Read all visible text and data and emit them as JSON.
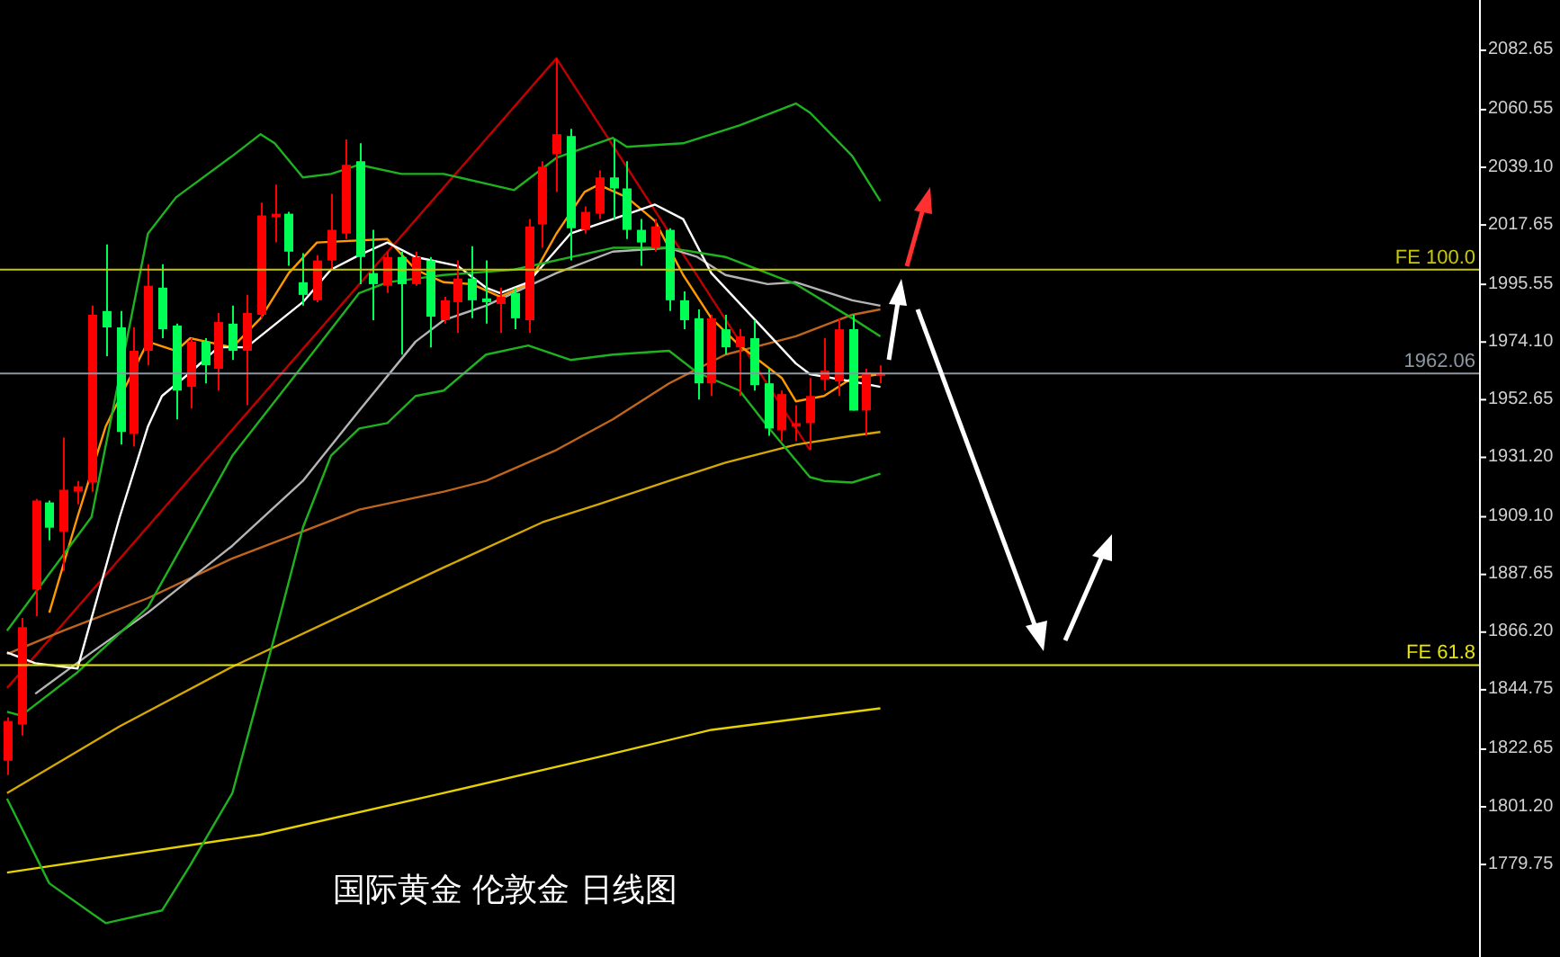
{
  "chart_data": {
    "type": "candlestick",
    "title": "国际黄金 伦敦金 日线图",
    "categories": [
      null,
      null,
      null,
      null,
      null,
      null,
      null,
      null,
      null,
      null,
      null,
      null,
      null,
      null,
      null,
      null,
      null,
      null,
      null,
      null,
      null,
      null,
      null,
      null,
      null,
      null,
      null,
      null,
      null,
      null,
      null,
      null,
      null,
      null,
      null,
      null,
      null,
      null,
      null,
      null,
      null,
      null,
      null,
      null,
      null,
      null,
      null,
      null,
      null,
      null,
      null,
      null,
      null,
      null,
      null,
      null,
      null,
      null,
      null,
      null,
      null,
      null,
      null,
      null,
      null,
      null,
      null,
      null,
      null,
      null,
      null,
      null,
      null,
      null,
      null,
      null,
      null,
      null,
      null,
      null,
      null,
      null,
      null,
      null,
      null,
      null,
      null,
      null,
      null,
      null,
      null,
      null,
      null,
      null,
      null,
      null,
      null,
      null,
      null,
      null,
      null,
      null,
      null,
      null,
      null
    ],
    "ohlc": [
      [
        1818.0,
        1834.2,
        1812.7,
        1832.8
      ],
      [
        1831.5,
        1871.1,
        1827.4,
        1867.7
      ],
      [
        1881.8,
        1915.4,
        1871.8,
        1914.8
      ],
      [
        1914.1,
        1914.8,
        1900.0,
        1904.7
      ],
      [
        1903.3,
        1938.2,
        1888.6,
        1918.8
      ],
      [
        1918.1,
        1922.1,
        1913.4,
        1920.1
      ],
      [
        1921.5,
        1987.3,
        1918.1,
        1983.9
      ],
      [
        1985.3,
        2010.1,
        1968.5,
        1979.2
      ],
      [
        1979.2,
        1985.3,
        1935.6,
        1940.3
      ],
      [
        1939.6,
        1979.2,
        1934.9,
        1970.5
      ],
      [
        1970.5,
        2002.7,
        1965.1,
        1994.7
      ],
      [
        1994.0,
        2002.7,
        1975.2,
        1978.5
      ],
      [
        1979.9,
        1980.6,
        1945.0,
        1955.7
      ],
      [
        1957.1,
        1975.2,
        1949.0,
        1973.9
      ],
      [
        1973.9,
        1975.2,
        1958.4,
        1965.1
      ],
      [
        1963.8,
        1984.6,
        1955.7,
        1981.2
      ],
      [
        1980.6,
        1987.3,
        1967.1,
        1970.5
      ],
      [
        1970.5,
        1991.3,
        1950.3,
        1984.6
      ],
      [
        1983.9,
        2025.6,
        1982.6,
        2020.9
      ],
      [
        2020.2,
        2032.3,
        2010.8,
        2021.5
      ],
      [
        2021.5,
        2022.2,
        2002.1,
        2007.4
      ],
      [
        1996.0,
        2006.8,
        1987.3,
        1991.3
      ],
      [
        1989.3,
        2006.1,
        1988.6,
        2004.1
      ],
      [
        2004.1,
        2028.9,
        2000.7,
        2015.5
      ],
      [
        2014.1,
        2049.1,
        2012.1,
        2039.7
      ],
      [
        2041.0,
        2047.7,
        1995.3,
        2005.4
      ],
      [
        1999.4,
        2015.5,
        1981.9,
        1995.3
      ],
      [
        1994.7,
        2007.4,
        1992.0,
        2005.4
      ],
      [
        2005.4,
        2007.4,
        1969.1,
        1995.3
      ],
      [
        1995.3,
        2007.4,
        1994.7,
        2005.4
      ],
      [
        2004.1,
        2005.4,
        1971.8,
        1983.2
      ],
      [
        1981.9,
        1990.6,
        1980.6,
        1989.3
      ],
      [
        1988.6,
        2004.1,
        1977.2,
        1997.4
      ],
      [
        1997.4,
        2009.4,
        1982.6,
        1989.3
      ],
      [
        1990.0,
        2004.1,
        1980.6,
        1988.6
      ],
      [
        1987.9,
        1994.0,
        1977.2,
        1990.6
      ],
      [
        1992.0,
        1994.0,
        1978.5,
        1982.6
      ],
      [
        1981.9,
        2019.5,
        1977.2,
        2016.8
      ],
      [
        2017.5,
        2041.0,
        2008.8,
        2039.0
      ],
      [
        2043.7,
        2079.3,
        2029.6,
        2051.1
      ],
      [
        2050.4,
        2053.1,
        2004.1,
        2016.1
      ],
      [
        2015.5,
        2024.2,
        2014.1,
        2022.2
      ],
      [
        2021.5,
        2037.6,
        2019.5,
        2035.0
      ],
      [
        2035.0,
        2049.1,
        2019.5,
        2030.9
      ],
      [
        2030.9,
        2041.0,
        2012.1,
        2015.5
      ],
      [
        2015.5,
        2019.5,
        2002.1,
        2010.8
      ],
      [
        2008.8,
        2019.5,
        2007.4,
        2016.8
      ],
      [
        2015.5,
        2016.1,
        1985.3,
        1989.3
      ],
      [
        1989.3,
        1992.6,
        1978.5,
        1981.9
      ],
      [
        1982.6,
        1985.9,
        1952.4,
        1958.4
      ],
      [
        1958.4,
        1983.9,
        1953.7,
        1982.6
      ],
      [
        1978.5,
        1983.9,
        1969.1,
        1971.8
      ],
      [
        1971.8,
        1978.5,
        1953.7,
        1975.9
      ],
      [
        1975.2,
        1981.9,
        1955.7,
        1957.7
      ],
      [
        1958.4,
        1963.8,
        1938.9,
        1941.6
      ],
      [
        1940.9,
        1955.7,
        1936.9,
        1954.4
      ],
      [
        1942.3,
        1950.3,
        1936.9,
        1943.6
      ],
      [
        1943.6,
        1960.4,
        1933.6,
        1953.7
      ],
      [
        1959.7,
        1975.2,
        1955.7,
        1963.1
      ],
      [
        1959.1,
        1982.6,
        1953.7,
        1978.5
      ],
      [
        1978.5,
        1983.9,
        1948.3,
        1948.3
      ],
      [
        1948.3,
        1963.8,
        1938.9,
        1962.4
      ],
      [
        1961.1,
        1965.1,
        1958.4,
        1962.1
      ],
      null,
      null,
      null,
      null,
      null,
      null,
      null,
      null,
      null,
      null,
      null,
      null,
      null,
      null,
      null,
      null,
      null,
      null,
      null,
      null,
      null,
      null,
      null,
      null,
      null,
      null,
      null,
      null,
      null,
      null,
      null,
      null,
      null,
      null,
      null,
      null,
      null,
      null,
      null,
      null,
      null,
      null
    ],
    "colors": [
      "#ff0000",
      "#ff0000",
      "#ff0000",
      "#00ff55",
      "#ff0000",
      "#ff0000",
      "#ff0000",
      "#00ff55",
      "#00ff55",
      "#ff0000",
      "#ff0000",
      "#00ff55",
      "#00ff55",
      "#ff0000",
      "#00ff55",
      "#ff0000",
      "#00ff55",
      "#ff0000",
      "#ff0000",
      "#ff0000",
      "#00ff55",
      "#00ff55",
      "#ff0000",
      "#ff0000",
      "#ff0000",
      "#00ff55",
      "#00ff55",
      "#ff0000",
      "#00ff55",
      "#ff0000",
      "#00ff55",
      "#ff0000",
      "#ff0000",
      "#00ff55",
      "#00ff55",
      "#ff0000",
      "#00ff55",
      "#ff0000",
      "#ff0000",
      "#ff0000",
      "#00ff55",
      "#ff0000",
      "#ff0000",
      "#00ff55",
      "#00ff55",
      "#00ff55",
      "#ff0000",
      "#00ff55",
      "#00ff55",
      "#00ff55",
      "#ff0000",
      "#00ff55",
      "#ff0000",
      "#00ff55",
      "#00ff55",
      "#ff0000",
      "#ff0000",
      "#ff0000",
      "#ff0000",
      "#ff0000",
      "#00ff55",
      "#ff0000",
      "#ff0000",
      null,
      null,
      null,
      null,
      null,
      null,
      null,
      null,
      null,
      null,
      null,
      null,
      null,
      null,
      null,
      null,
      null,
      null,
      null,
      null,
      null,
      null,
      null,
      null,
      null,
      null,
      null,
      null,
      null,
      null,
      null,
      null,
      null,
      null,
      null,
      null,
      null,
      null,
      null,
      null,
      null,
      null
    ],
    "series": [
      {
        "type": "line",
        "color": "#1fb21f",
        "values": [
          1866.4,
          null,
          null,
          null,
          null,
          null,
          1908.7,
          null,
          null,
          null,
          2014.1,
          null,
          2027.6,
          null,
          null,
          null,
          2043.0,
          null,
          2051.1,
          2047.7,
          null,
          2035.0,
          null,
          2036.3,
          null,
          2039.7,
          null,
          null,
          2036.3,
          null,
          null,
          2036.3,
          null,
          null,
          null,
          null,
          2030.3,
          null,
          null,
          2042.3,
          null,
          null,
          null,
          2049.7,
          2046.4,
          null,
          null,
          null,
          2047.7,
          null,
          null,
          null,
          2054.4,
          null,
          null,
          null,
          2062.5,
          2059.1,
          null,
          null,
          2043.0,
          null,
          2026.2,
          null,
          null,
          null,
          null,
          null,
          null,
          null,
          null,
          null,
          null,
          null,
          null,
          null,
          null,
          null,
          null,
          null,
          null,
          null,
          null,
          null,
          null,
          null,
          null,
          null,
          null,
          null,
          null,
          null,
          null,
          null,
          null,
          null,
          null,
          null,
          null,
          null,
          null,
          null,
          null,
          null,
          null
        ]
      },
      {
        "type": "line",
        "color": "#1fb21f",
        "values": [
          1836.2,
          1834.8,
          null,
          null,
          null,
          1850.9,
          null,
          null,
          null,
          null,
          1875.1,
          null,
          null,
          null,
          null,
          null,
          1931.5,
          null,
          null,
          null,
          null,
          null,
          1971.8,
          null,
          null,
          1992.0,
          null,
          1996.0,
          null,
          null,
          null,
          1998.7,
          null,
          null,
          null,
          null,
          2000.7,
          null,
          null,
          null,
          null,
          null,
          null,
          2008.8,
          null,
          null,
          null,
          2008.8,
          null,
          null,
          null,
          2005.4,
          null,
          null,
          null,
          null,
          1995.3,
          null,
          null,
          null,
          1982.6,
          null,
          1975.9,
          null,
          null,
          null,
          null,
          null,
          null,
          null,
          null,
          null,
          null,
          null,
          null,
          null,
          null,
          null,
          null,
          null,
          null,
          null,
          null,
          null,
          null,
          null,
          null,
          null,
          null,
          null,
          null,
          null,
          null,
          null,
          null,
          null,
          null,
          null,
          null,
          null,
          null,
          null,
          null,
          null,
          null
        ]
      },
      {
        "type": "line",
        "color": "#1fb21f",
        "values": [
          1803.9,
          null,
          null,
          1772.4,
          null,
          null,
          null,
          1757.6,
          null,
          null,
          null,
          1762.3,
          null,
          1779.1,
          null,
          null,
          1806.0,
          null,
          null,
          1864.4,
          null,
          1904.7,
          null,
          1931.5,
          null,
          1941.6,
          null,
          1943.6,
          null,
          1953.7,
          null,
          1955.7,
          null,
          null,
          1969.1,
          null,
          null,
          1972.5,
          null,
          null,
          1967.1,
          null,
          null,
          1969.1,
          null,
          null,
          null,
          1970.5,
          null,
          1962.4,
          null,
          null,
          1955.7,
          null,
          1942.3,
          null,
          null,
          1923.5,
          1922.1,
          null,
          1921.5,
          null,
          1924.8,
          null,
          null,
          null,
          null,
          null,
          null,
          null,
          null,
          null,
          null,
          null,
          null,
          null,
          null,
          null,
          null,
          null,
          null,
          null,
          null,
          null,
          null,
          null,
          null,
          null,
          null,
          null,
          null,
          null,
          null,
          null,
          null,
          null,
          null,
          null,
          null,
          null,
          null,
          null,
          null,
          null,
          null
        ]
      },
      {
        "type": "line",
        "color": "#ffffff",
        "values": [
          1858.3,
          null,
          1854.3,
          null,
          null,
          1852.3,
          null,
          null,
          1908.7,
          null,
          1942.3,
          1953.7,
          null,
          1962.4,
          null,
          1971.8,
          null,
          1971.8,
          null,
          null,
          null,
          1988.6,
          null,
          2000.7,
          null,
          2006.1,
          null,
          2010.8,
          null,
          2005.4,
          null,
          null,
          2002.1,
          null,
          1994.0,
          1992.0,
          null,
          1996.0,
          null,
          null,
          2014.1,
          null,
          null,
          2019.5,
          null,
          null,
          2024.9,
          null,
          2019.5,
          null,
          1999.4,
          null,
          null,
          1982.6,
          null,
          null,
          1965.8,
          1961.8,
          null,
          null,
          1959.1,
          null,
          1957.1,
          null,
          null,
          null,
          null,
          null,
          null,
          null,
          null,
          null,
          null,
          null,
          null,
          null,
          null,
          null,
          null,
          null,
          null,
          null,
          null,
          null,
          null,
          null,
          null,
          null,
          null,
          null,
          null,
          null,
          null,
          null,
          null,
          null,
          null,
          null,
          null,
          null,
          null,
          null,
          null,
          null,
          null
        ]
      },
      {
        "type": "line",
        "color": "#b4b4b4",
        "values": [
          null,
          null,
          1842.9,
          null,
          null,
          null,
          1858.3,
          null,
          null,
          null,
          1873.1,
          null,
          null,
          null,
          null,
          null,
          1898.0,
          null,
          null,
          null,
          null,
          1922.1,
          null,
          null,
          null,
          1948.3,
          null,
          null,
          null,
          1973.9,
          null,
          1981.9,
          null,
          null,
          1987.3,
          null,
          null,
          null,
          null,
          1999.4,
          null,
          null,
          null,
          2007.4,
          null,
          null,
          null,
          2008.8,
          null,
          2005.4,
          null,
          1998.7,
          null,
          null,
          1995.3,
          null,
          1996.0,
          null,
          null,
          null,
          1989.3,
          null,
          1987.3,
          null,
          null,
          null,
          null,
          null,
          null,
          null,
          null,
          null,
          null,
          null,
          null,
          null,
          null,
          null,
          null,
          null,
          null,
          null,
          null,
          null,
          null,
          null,
          null,
          null,
          null,
          null,
          null,
          null,
          null,
          null,
          null,
          null,
          null,
          null,
          null,
          null,
          null,
          null,
          null,
          null,
          null
        ]
      },
      {
        "type": "line",
        "color": "#ff9900",
        "values": [
          null,
          null,
          null,
          1873.1,
          null,
          1908.7,
          null,
          1942.3,
          null,
          null,
          1973.9,
          null,
          1970.5,
          1975.2,
          null,
          null,
          1971.8,
          null,
          1982.6,
          null,
          1999.4,
          null,
          2010.8,
          null,
          null,
          null,
          null,
          2012.1,
          null,
          2000.7,
          null,
          1996.0,
          null,
          1995.3,
          null,
          1990.6,
          null,
          1995.3,
          null,
          2014.1,
          null,
          2029.6,
          2032.3,
          null,
          2027.6,
          null,
          2018.8,
          null,
          1998.7,
          null,
          1982.6,
          null,
          1972.5,
          null,
          null,
          1960.4,
          1951.7,
          null,
          1953.7,
          null,
          1960.4,
          null,
          1961.8,
          null,
          null,
          null,
          null,
          null,
          null,
          null,
          null,
          null,
          null,
          null,
          null,
          null,
          null,
          null,
          null,
          null,
          null,
          null,
          null,
          null,
          null,
          null,
          null,
          null,
          null,
          null,
          null,
          null,
          null,
          null,
          null,
          null,
          null,
          null,
          null,
          null,
          null,
          null,
          null,
          null,
          null
        ]
      },
      {
        "type": "line",
        "color": "#c0661c",
        "values": [
          1857.7,
          null,
          null,
          null,
          1866.4,
          null,
          null,
          null,
          null,
          null,
          1878.5,
          null,
          null,
          null,
          null,
          null,
          1893.3,
          null,
          null,
          null,
          null,
          1903.3,
          null,
          null,
          null,
          1911.4,
          null,
          null,
          null,
          null,
          null,
          1918.1,
          null,
          null,
          1922.1,
          null,
          null,
          null,
          null,
          1933.6,
          null,
          null,
          null,
          1945.0,
          null,
          null,
          null,
          1958.4,
          null,
          null,
          null,
          1969.1,
          null,
          null,
          null,
          null,
          1975.9,
          null,
          null,
          null,
          1983.9,
          null,
          1985.9,
          null,
          null,
          null,
          null,
          null,
          null,
          null,
          null,
          null,
          null,
          null,
          null,
          null,
          null,
          null,
          null,
          null,
          null,
          null,
          null,
          null,
          null,
          null,
          null,
          null,
          null,
          null,
          null,
          null,
          null,
          null,
          null,
          null,
          null,
          null,
          null,
          null,
          null,
          null,
          null,
          null,
          null
        ]
      },
      {
        "type": "line",
        "color": "#d4a800",
        "values": [
          1806.0,
          null,
          null,
          null,
          null,
          null,
          null,
          null,
          1830.8,
          null,
          null,
          null,
          null,
          null,
          null,
          null,
          1853.0,
          null,
          null,
          null,
          null,
          null,
          null,
          null,
          null,
          1875.1,
          null,
          null,
          null,
          null,
          null,
          1889.9,
          null,
          null,
          null,
          null,
          null,
          null,
          1906.7,
          null,
          null,
          null,
          1913.4,
          null,
          null,
          null,
          null,
          1922.1,
          null,
          null,
          null,
          1928.9,
          null,
          null,
          null,
          null,
          1935.6,
          null,
          null,
          null,
          1938.9,
          null,
          1940.3,
          null,
          null,
          null,
          null,
          null,
          null,
          null,
          null,
          null,
          null,
          null,
          null,
          null,
          null,
          null,
          null,
          null,
          null,
          null,
          null,
          null,
          null,
          null,
          null,
          null,
          null,
          null,
          null,
          null,
          null,
          null,
          null,
          null,
          null,
          null,
          null,
          null,
          null,
          null,
          null,
          null,
          null
        ]
      },
      {
        "type": "line",
        "color": "#e6d200",
        "values": [
          1776.4,
          null,
          null,
          null,
          null,
          null,
          null,
          null,
          null,
          null,
          null,
          null,
          null,
          null,
          null,
          null,
          null,
          null,
          1790.5,
          null,
          null,
          null,
          null,
          null,
          null,
          null,
          null,
          null,
          null,
          null,
          null,
          1806.0,
          null,
          null,
          null,
          null,
          null,
          null,
          null,
          null,
          null,
          null,
          1819.4,
          null,
          null,
          null,
          null,
          null,
          null,
          null,
          1829.5,
          null,
          null,
          null,
          null,
          null,
          null,
          null,
          null,
          null,
          null,
          null,
          1837.5,
          null,
          null,
          null,
          null,
          null,
          null,
          null,
          null,
          null,
          null,
          null,
          null,
          null,
          null,
          null,
          null,
          null,
          null,
          null,
          null,
          null,
          null,
          null,
          null,
          null,
          null,
          null,
          null,
          null,
          null,
          null,
          null,
          null,
          null,
          null,
          null,
          null,
          null,
          null,
          null,
          null,
          null
        ]
      },
      {
        "type": "line",
        "color": "#c00000",
        "values": [
          1845.1,
          null,
          null,
          null,
          null,
          null,
          null,
          null,
          null,
          null,
          null,
          null,
          null,
          null,
          null,
          null,
          null,
          null,
          null,
          null,
          null,
          null,
          null,
          null,
          null,
          null,
          null,
          null,
          null,
          null,
          null,
          null,
          null,
          null,
          null,
          null,
          null,
          null,
          null,
          2079.3,
          null,
          null,
          null,
          null,
          null,
          null,
          null,
          null,
          null,
          null,
          null,
          null,
          null,
          null,
          null,
          null,
          null,
          1933.6,
          null,
          null,
          null,
          null,
          null,
          null,
          null,
          null,
          null,
          null,
          null,
          null,
          null,
          null,
          null,
          null,
          null,
          null,
          null,
          null,
          null,
          null,
          null,
          null,
          null,
          null,
          null,
          null,
          null,
          null,
          null,
          null,
          null,
          null,
          null,
          null,
          null,
          null,
          null,
          null,
          null,
          null,
          null,
          null,
          null,
          null,
          null
        ]
      }
    ],
    "ylim": [
      1745,
      2101
    ],
    "yticks": [
      1779.75,
      {
        "value": 1801.2,
        "label": "1801.20"
      },
      1822.65,
      1844.75,
      {
        "value": 1866.2,
        "label": "1866.20"
      },
      1887.65,
      {
        "value": 1909.1,
        "label": "1909.10"
      },
      {
        "value": 1931.2,
        "label": "1931.20"
      },
      1952.65,
      {
        "value": 1974.1,
        "label": "1974.10"
      },
      1995.55,
      2017.65,
      {
        "value": 2039.1,
        "label": "2039.10"
      },
      2060.55,
      2082.65
    ],
    "tick_labels": "y",
    "ref_lines": [
      {
        "axis": "y",
        "value": 2000.7,
        "label": "FE 100.0",
        "color": "#c8c800"
      },
      {
        "axis": "y",
        "value": 1853.6,
        "label": "FE 61.8",
        "color": "#e6e600"
      },
      {
        "axis": "y",
        "value": 1962.06,
        "label": "1962.06",
        "color": "#8c96a0"
      }
    ]
  }
}
